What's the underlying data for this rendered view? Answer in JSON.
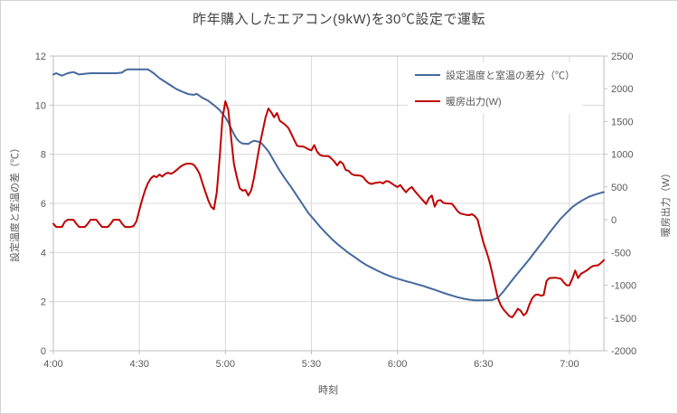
{
  "title": "昨年購入したエアコン(9kW)を30℃設定で運転",
  "colors": {
    "series_blue": "#45699E",
    "series_red": "#C00000",
    "gridline": "#D9D9D9",
    "axis_line": "#BFBFBF",
    "tick_text": "#595959",
    "title_text": "#444444",
    "background": "#FFFFFF"
  },
  "chart_data": {
    "type": "line",
    "title": "昨年購入したエアコン(9kW)を30℃設定で運転",
    "grid": true,
    "legend_position": "top-right-inside",
    "x_axis": {
      "label": "時刻",
      "unit": "minutes after 4:00",
      "range": [
        0,
        192
      ],
      "ticks": [
        {
          "minute": 0,
          "label": "4:00"
        },
        {
          "minute": 30,
          "label": "4:30"
        },
        {
          "minute": 60,
          "label": "5:00"
        },
        {
          "minute": 90,
          "label": "5:30"
        },
        {
          "minute": 120,
          "label": "6:00"
        },
        {
          "minute": 150,
          "label": "6:30"
        },
        {
          "minute": 180,
          "label": "7:00"
        }
      ]
    },
    "y_axis_left": {
      "label": "設定温度と室温の差（℃）",
      "range": [
        0,
        12
      ],
      "tick_step": 2,
      "ticks": [
        0,
        2,
        4,
        6,
        8,
        10,
        12
      ]
    },
    "y_axis_right": {
      "label": "暖房出力（W）",
      "range": [
        -2000,
        2500
      ],
      "tick_step": 500,
      "ticks": [
        2500,
        2000,
        1500,
        1000,
        500,
        0,
        -500,
        -1000,
        -1500,
        -2000
      ]
    },
    "series": [
      {
        "id": "temp-diff",
        "name": "設定温度と室温の差分（℃）",
        "axis": "left",
        "color": "#45699E",
        "points": [
          [
            0,
            11.25
          ],
          [
            1,
            11.3
          ],
          [
            3,
            11.2
          ],
          [
            5,
            11.3
          ],
          [
            7,
            11.35
          ],
          [
            9,
            11.25
          ],
          [
            11,
            11.28
          ],
          [
            13,
            11.3
          ],
          [
            16,
            11.3
          ],
          [
            19,
            11.3
          ],
          [
            22,
            11.3
          ],
          [
            24,
            11.33
          ],
          [
            25,
            11.42
          ],
          [
            26,
            11.46
          ],
          [
            29,
            11.46
          ],
          [
            33,
            11.46
          ],
          [
            35,
            11.3
          ],
          [
            37,
            11.1
          ],
          [
            39,
            10.95
          ],
          [
            41,
            10.8
          ],
          [
            43,
            10.65
          ],
          [
            45,
            10.55
          ],
          [
            47,
            10.45
          ],
          [
            49,
            10.42
          ],
          [
            50,
            10.46
          ],
          [
            52,
            10.3
          ],
          [
            54,
            10.18
          ],
          [
            56,
            10.0
          ],
          [
            58,
            9.8
          ],
          [
            60,
            9.5
          ],
          [
            61,
            9.3
          ],
          [
            62,
            9.05
          ],
          [
            63,
            8.82
          ],
          [
            64,
            8.62
          ],
          [
            65,
            8.5
          ],
          [
            66,
            8.44
          ],
          [
            68,
            8.42
          ],
          [
            69,
            8.5
          ],
          [
            70,
            8.55
          ],
          [
            72,
            8.5
          ],
          [
            73,
            8.4
          ],
          [
            75,
            8.12
          ],
          [
            77,
            7.72
          ],
          [
            79,
            7.32
          ],
          [
            81,
            6.98
          ],
          [
            83,
            6.65
          ],
          [
            85,
            6.3
          ],
          [
            87,
            5.95
          ],
          [
            89,
            5.6
          ],
          [
            91,
            5.33
          ],
          [
            93,
            5.05
          ],
          [
            95,
            4.8
          ],
          [
            97,
            4.56
          ],
          [
            99,
            4.35
          ],
          [
            101,
            4.16
          ],
          [
            103,
            3.98
          ],
          [
            105,
            3.82
          ],
          [
            107,
            3.65
          ],
          [
            109,
            3.5
          ],
          [
            111,
            3.38
          ],
          [
            113,
            3.26
          ],
          [
            115,
            3.15
          ],
          [
            117,
            3.05
          ],
          [
            119,
            2.97
          ],
          [
            121,
            2.9
          ],
          [
            123,
            2.83
          ],
          [
            125,
            2.77
          ],
          [
            127,
            2.7
          ],
          [
            129,
            2.64
          ],
          [
            131,
            2.56
          ],
          [
            133,
            2.48
          ],
          [
            135,
            2.4
          ],
          [
            137,
            2.32
          ],
          [
            139,
            2.25
          ],
          [
            141,
            2.18
          ],
          [
            143,
            2.12
          ],
          [
            145,
            2.08
          ],
          [
            147,
            2.05
          ],
          [
            150,
            2.05
          ],
          [
            153,
            2.06
          ],
          [
            155,
            2.15
          ],
          [
            157,
            2.42
          ],
          [
            159,
            2.72
          ],
          [
            161,
            3.02
          ],
          [
            163,
            3.3
          ],
          [
            165,
            3.58
          ],
          [
            167,
            3.88
          ],
          [
            169,
            4.18
          ],
          [
            171,
            4.48
          ],
          [
            173,
            4.8
          ],
          [
            175,
            5.1
          ],
          [
            177,
            5.38
          ],
          [
            179,
            5.62
          ],
          [
            181,
            5.85
          ],
          [
            183,
            6.02
          ],
          [
            185,
            6.16
          ],
          [
            187,
            6.28
          ],
          [
            189,
            6.36
          ],
          [
            191,
            6.43
          ],
          [
            192,
            6.46
          ]
        ]
      },
      {
        "id": "heating-output",
        "name": "暖房出力(W)",
        "axis": "right",
        "color": "#C00000",
        "points": [
          [
            0,
            -60
          ],
          [
            1,
            -110
          ],
          [
            3,
            -110
          ],
          [
            4,
            -30
          ],
          [
            5,
            0
          ],
          [
            7,
            0
          ],
          [
            8,
            -60
          ],
          [
            9,
            -110
          ],
          [
            11,
            -110
          ],
          [
            12,
            -60
          ],
          [
            13,
            0
          ],
          [
            15,
            0
          ],
          [
            16,
            -60
          ],
          [
            17,
            -110
          ],
          [
            19,
            -110
          ],
          [
            20,
            -60
          ],
          [
            21,
            0
          ],
          [
            23,
            0
          ],
          [
            24,
            -60
          ],
          [
            25,
            -110
          ],
          [
            27,
            -110
          ],
          [
            28,
            -95
          ],
          [
            29,
            -20
          ],
          [
            30,
            150
          ],
          [
            31,
            310
          ],
          [
            32,
            450
          ],
          [
            33,
            560
          ],
          [
            34,
            630
          ],
          [
            35,
            670
          ],
          [
            36,
            650
          ],
          [
            37,
            690
          ],
          [
            38,
            660
          ],
          [
            39,
            700
          ],
          [
            40,
            720
          ],
          [
            41,
            700
          ],
          [
            42,
            725
          ],
          [
            43,
            760
          ],
          [
            44,
            800
          ],
          [
            45,
            830
          ],
          [
            46,
            850
          ],
          [
            47,
            858
          ],
          [
            48,
            856
          ],
          [
            49,
            840
          ],
          [
            50,
            780
          ],
          [
            51,
            700
          ],
          [
            52,
            560
          ],
          [
            53,
            430
          ],
          [
            54,
            300
          ],
          [
            55,
            200
          ],
          [
            56,
            160
          ],
          [
            57,
            420
          ],
          [
            58,
            950
          ],
          [
            59,
            1550
          ],
          [
            60,
            1810
          ],
          [
            61,
            1680
          ],
          [
            62,
            1250
          ],
          [
            63,
            850
          ],
          [
            64,
            650
          ],
          [
            65,
            480
          ],
          [
            66,
            445
          ],
          [
            67,
            455
          ],
          [
            68,
            370
          ],
          [
            69,
            450
          ],
          [
            70,
            640
          ],
          [
            71,
            900
          ],
          [
            72,
            1150
          ],
          [
            73,
            1350
          ],
          [
            74,
            1560
          ],
          [
            75,
            1700
          ],
          [
            76,
            1640
          ],
          [
            77,
            1565
          ],
          [
            78,
            1630
          ],
          [
            79,
            1510
          ],
          [
            80,
            1480
          ],
          [
            81,
            1445
          ],
          [
            82,
            1400
          ],
          [
            83,
            1310
          ],
          [
            84,
            1220
          ],
          [
            85,
            1130
          ],
          [
            86,
            1120
          ],
          [
            87,
            1120
          ],
          [
            88,
            1100
          ],
          [
            89,
            1075
          ],
          [
            90,
            1060
          ],
          [
            91,
            1140
          ],
          [
            92,
            1040
          ],
          [
            93,
            990
          ],
          [
            94,
            975
          ],
          [
            96,
            970
          ],
          [
            97,
            935
          ],
          [
            98,
            890
          ],
          [
            99,
            830
          ],
          [
            100,
            890
          ],
          [
            101,
            855
          ],
          [
            102,
            760
          ],
          [
            103,
            745
          ],
          [
            104,
            700
          ],
          [
            105,
            680
          ],
          [
            107,
            675
          ],
          [
            108,
            655
          ],
          [
            109,
            600
          ],
          [
            110,
            560
          ],
          [
            111,
            545
          ],
          [
            112,
            560
          ],
          [
            114,
            575
          ],
          [
            115,
            555
          ],
          [
            116,
            590
          ],
          [
            117,
            585
          ],
          [
            118,
            555
          ],
          [
            119,
            525
          ],
          [
            120,
            500
          ],
          [
            121,
            530
          ],
          [
            122,
            470
          ],
          [
            123,
            420
          ],
          [
            124,
            470
          ],
          [
            125,
            500
          ],
          [
            126,
            440
          ],
          [
            127,
            390
          ],
          [
            128,
            340
          ],
          [
            129,
            290
          ],
          [
            130,
            240
          ],
          [
            131,
            330
          ],
          [
            132,
            370
          ],
          [
            133,
            200
          ],
          [
            134,
            290
          ],
          [
            135,
            300
          ],
          [
            136,
            260
          ],
          [
            137,
            250
          ],
          [
            139,
            245
          ],
          [
            140,
            190
          ],
          [
            141,
            130
          ],
          [
            142,
            95
          ],
          [
            144,
            75
          ],
          [
            145,
            70
          ],
          [
            146,
            85
          ],
          [
            147,
            55
          ],
          [
            148,
            0
          ],
          [
            149,
            -180
          ],
          [
            150,
            -350
          ],
          [
            151,
            -480
          ],
          [
            152,
            -620
          ],
          [
            153,
            -800
          ],
          [
            154,
            -1000
          ],
          [
            155,
            -1190
          ],
          [
            156,
            -1300
          ],
          [
            157,
            -1370
          ],
          [
            158,
            -1420
          ],
          [
            159,
            -1470
          ],
          [
            160,
            -1490
          ],
          [
            161,
            -1430
          ],
          [
            162,
            -1360
          ],
          [
            163,
            -1390
          ],
          [
            164,
            -1460
          ],
          [
            165,
            -1420
          ],
          [
            166,
            -1300
          ],
          [
            167,
            -1200
          ],
          [
            168,
            -1150
          ],
          [
            169,
            -1140
          ],
          [
            170,
            -1160
          ],
          [
            171,
            -1150
          ],
          [
            172,
            -935
          ],
          [
            173,
            -890
          ],
          [
            175,
            -885
          ],
          [
            177,
            -900
          ],
          [
            178,
            -955
          ],
          [
            179,
            -1000
          ],
          [
            180,
            -1000
          ],
          [
            181,
            -900
          ],
          [
            182,
            -775
          ],
          [
            183,
            -890
          ],
          [
            184,
            -825
          ],
          [
            185,
            -800
          ],
          [
            186,
            -775
          ],
          [
            187,
            -740
          ],
          [
            188,
            -710
          ],
          [
            189,
            -700
          ],
          [
            190,
            -695
          ],
          [
            191,
            -660
          ],
          [
            192,
            -615
          ]
        ]
      }
    ]
  }
}
